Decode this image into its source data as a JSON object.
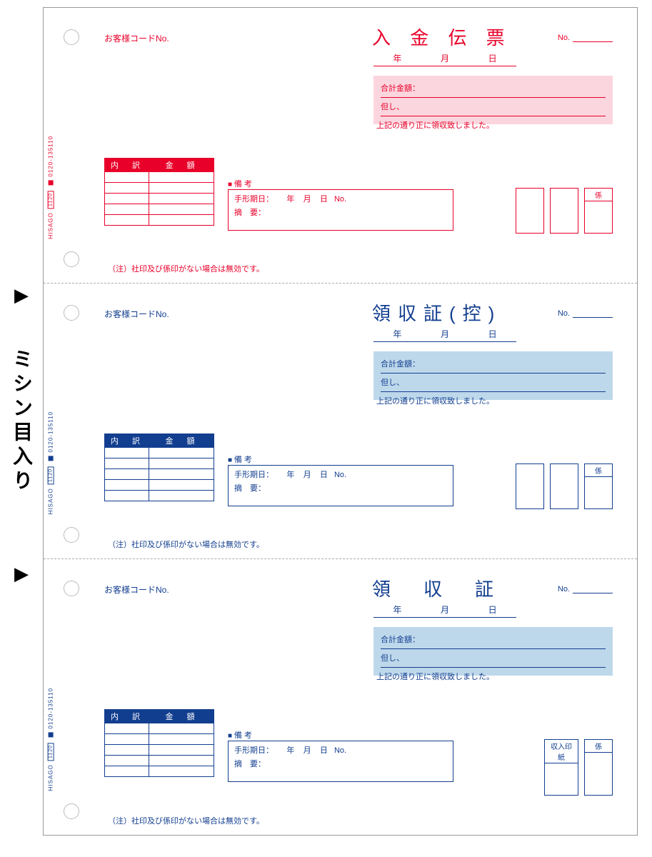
{
  "side_label": {
    "arrow": "▶",
    "text": "ミシン目入り"
  },
  "colors": {
    "red": "#e8002a",
    "red_bg": "#fbd6de",
    "blue": "#123e8f",
    "blue_bg": "#bed8eb",
    "hole_border": "#bbbbbb",
    "sheet_border": "#999999"
  },
  "common": {
    "customer_code": "お客様コードNo.",
    "no_label": "No.",
    "year": "年",
    "month": "月",
    "day": "日",
    "total_label": "合計金額：",
    "proviso_label": "但し、",
    "received_note": "上記の通り正に領収致しました。",
    "table_col1": "内　訳",
    "table_col2": "金　額",
    "remarks_title": "備 考",
    "bill_date": "手形期日：",
    "summary_label": "摘　要：",
    "no_small": "No.",
    "footer_note": "（注）社印及び係印がない場合は無効です。",
    "side_brand": "HISAGO",
    "side_num": "0120-135110",
    "side_box": "1120"
  },
  "slips": [
    {
      "title": "入 金 伝 票",
      "theme": "red",
      "stamps": [
        {
          "label": "",
          "w": "blank"
        },
        {
          "label": "",
          "w": "blank"
        },
        {
          "label": "係",
          "w": "w1"
        }
      ]
    },
    {
      "title": "領収証(控)",
      "theme": "blue",
      "stamps": [
        {
          "label": "",
          "w": "blank"
        },
        {
          "label": "",
          "w": "blank"
        },
        {
          "label": "係",
          "w": "w1"
        }
      ]
    },
    {
      "title": "領　収　証",
      "theme": "blue",
      "stamps": [
        {
          "label": "収入印紙",
          "w": "w2"
        },
        {
          "label": "係",
          "w": "w1"
        }
      ]
    }
  ]
}
